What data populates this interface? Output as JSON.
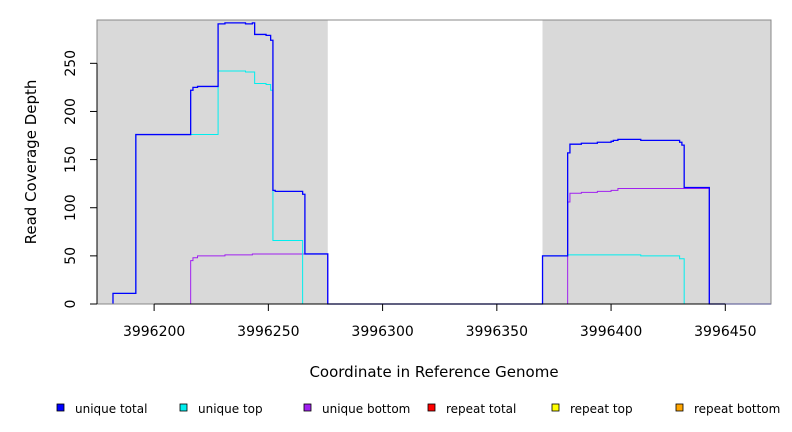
{
  "chart_data": {
    "type": "line",
    "title": "",
    "xlabel": "Coordinate in Reference Genome",
    "ylabel": "Read Coverage Depth",
    "xlim": [
      3996175,
      3996470
    ],
    "ylim": [
      0,
      295
    ],
    "x_ticks": [
      3996200,
      3996250,
      3996300,
      3996350,
      3996400,
      3996450
    ],
    "y_ticks": [
      0,
      50,
      100,
      150,
      200,
      250
    ],
    "x_tick_labels": [
      "3996200",
      "3996250",
      "3996300",
      "3996350",
      "3996400",
      "3996450"
    ],
    "y_tick_labels": [
      "0",
      "50",
      "100",
      "150",
      "200",
      "250"
    ],
    "shaded_regions": [
      [
        3996175,
        3996276
      ],
      [
        3996370,
        3996470
      ]
    ],
    "shaded_color": "#d9d9d9",
    "legend_placement": "bottom",
    "series": [
      {
        "name": "unique total",
        "color": "#0000ff",
        "points": [
          [
            3996182,
            0
          ],
          [
            3996182,
            11
          ],
          [
            3996192,
            11
          ],
          [
            3996192,
            176
          ],
          [
            3996216,
            176
          ],
          [
            3996216,
            222
          ],
          [
            3996217,
            222
          ],
          [
            3996217,
            225
          ],
          [
            3996219,
            225
          ],
          [
            3996219,
            226
          ],
          [
            3996228,
            226
          ],
          [
            3996228,
            291
          ],
          [
            3996231,
            291
          ],
          [
            3996231,
            292
          ],
          [
            3996240,
            292
          ],
          [
            3996240,
            291
          ],
          [
            3996243,
            291
          ],
          [
            3996243,
            292
          ],
          [
            3996244,
            292
          ],
          [
            3996244,
            280
          ],
          [
            3996249,
            280
          ],
          [
            3996249,
            279
          ],
          [
            3996251,
            279
          ],
          [
            3996251,
            274
          ],
          [
            3996252,
            274
          ],
          [
            3996252,
            118
          ],
          [
            3996253,
            118
          ],
          [
            3996253,
            117
          ],
          [
            3996265,
            117
          ],
          [
            3996265,
            114
          ],
          [
            3996266,
            114
          ],
          [
            3996266,
            52
          ],
          [
            3996276,
            52
          ],
          [
            3996276,
            0
          ],
          [
            3996370,
            0
          ],
          [
            3996370,
            50
          ],
          [
            3996381,
            50
          ],
          [
            3996381,
            157
          ],
          [
            3996382,
            157
          ],
          [
            3996382,
            166
          ],
          [
            3996387,
            166
          ],
          [
            3996387,
            167
          ],
          [
            3996394,
            167
          ],
          [
            3996394,
            168
          ],
          [
            3996400,
            168
          ],
          [
            3996400,
            169
          ],
          [
            3996401,
            169
          ],
          [
            3996401,
            170
          ],
          [
            3996403,
            170
          ],
          [
            3996403,
            171
          ],
          [
            3996413,
            171
          ],
          [
            3996413,
            170
          ],
          [
            3996430,
            170
          ],
          [
            3996430,
            168
          ],
          [
            3996431,
            168
          ],
          [
            3996431,
            165
          ],
          [
            3996432,
            165
          ],
          [
            3996432,
            121
          ],
          [
            3996443,
            121
          ],
          [
            3996443,
            0
          ],
          [
            3996470,
            0
          ]
        ]
      },
      {
        "name": "unique top",
        "color": "#00eeee",
        "points": [
          [
            3996182,
            0
          ],
          [
            3996182,
            11
          ],
          [
            3996192,
            11
          ],
          [
            3996192,
            176
          ],
          [
            3996228,
            176
          ],
          [
            3996228,
            242
          ],
          [
            3996240,
            242
          ],
          [
            3996240,
            241
          ],
          [
            3996244,
            241
          ],
          [
            3996244,
            229
          ],
          [
            3996249,
            229
          ],
          [
            3996249,
            228
          ],
          [
            3996251,
            228
          ],
          [
            3996251,
            222
          ],
          [
            3996252,
            222
          ],
          [
            3996252,
            66
          ],
          [
            3996265,
            66
          ],
          [
            3996265,
            0
          ],
          [
            3996370,
            0
          ],
          [
            3996370,
            50
          ],
          [
            3996381,
            50
          ],
          [
            3996381,
            51
          ],
          [
            3996413,
            51
          ],
          [
            3996413,
            50
          ],
          [
            3996430,
            50
          ],
          [
            3996430,
            47
          ],
          [
            3996432,
            47
          ],
          [
            3996432,
            0
          ],
          [
            3996470,
            0
          ]
        ]
      },
      {
        "name": "unique bottom",
        "color": "#a020f0",
        "points": [
          [
            3996175,
            0
          ],
          [
            3996216,
            0
          ],
          [
            3996216,
            45
          ],
          [
            3996217,
            45
          ],
          [
            3996217,
            48
          ],
          [
            3996219,
            48
          ],
          [
            3996219,
            50
          ],
          [
            3996231,
            50
          ],
          [
            3996231,
            51
          ],
          [
            3996243,
            51
          ],
          [
            3996243,
            52
          ],
          [
            3996266,
            52
          ],
          [
            3996276,
            52
          ],
          [
            3996276,
            0
          ],
          [
            3996381,
            0
          ],
          [
            3996381,
            106
          ],
          [
            3996382,
            106
          ],
          [
            3996382,
            115
          ],
          [
            3996387,
            115
          ],
          [
            3996387,
            116
          ],
          [
            3996394,
            116
          ],
          [
            3996394,
            117
          ],
          [
            3996400,
            117
          ],
          [
            3996400,
            118
          ],
          [
            3996403,
            118
          ],
          [
            3996403,
            120
          ],
          [
            3996443,
            120
          ],
          [
            3996443,
            0
          ],
          [
            3996470,
            0
          ]
        ]
      },
      {
        "name": "repeat total",
        "color": "#ff0000",
        "points": [
          [
            3996175,
            0
          ],
          [
            3996470,
            0
          ]
        ]
      },
      {
        "name": "repeat top",
        "color": "#ffff00",
        "points": [
          [
            3996175,
            0
          ],
          [
            3996470,
            0
          ]
        ]
      },
      {
        "name": "repeat bottom",
        "color": "#ffa500",
        "points": [
          [
            3996192,
            0
          ],
          [
            3996266,
            0
          ]
        ]
      }
    ]
  }
}
